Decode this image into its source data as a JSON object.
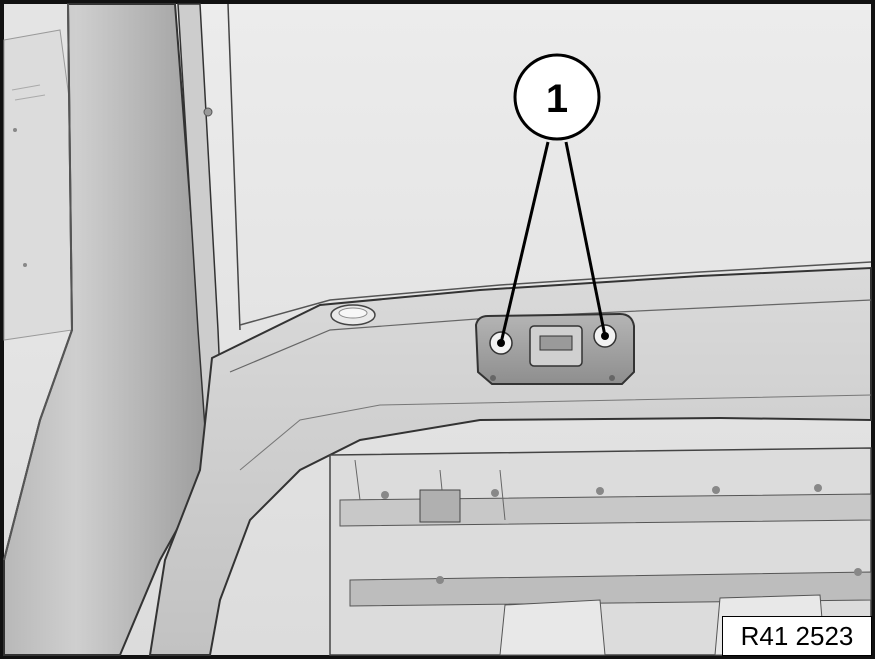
{
  "callouts": [
    {
      "number": "1",
      "target": "hinge-bolts"
    }
  ],
  "figure_code": "R41 2523",
  "colors": {
    "frame": "#1a1a1a",
    "panel_light": "#e7e7e7",
    "panel_mid": "#cfcfcf",
    "panel_dark": "#8a8a8a",
    "edge": "#3b3b3b"
  }
}
